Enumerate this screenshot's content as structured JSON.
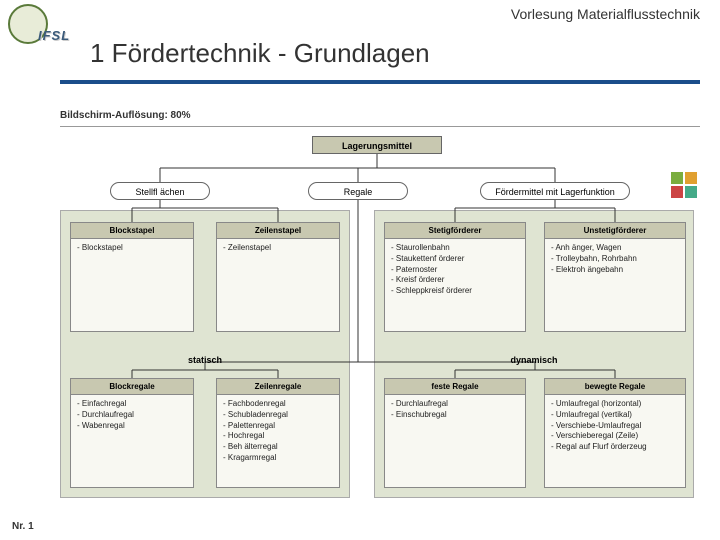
{
  "header": {
    "course": "Vorlesung Materialflusstechnik",
    "ifsl": "IFSL",
    "title": "1 Fördertechnik - Grundlagen",
    "resolution": "Bildschirm-Auflösung: 80%"
  },
  "colors": {
    "accent": "#1a4d8a",
    "panel_bg": "#dfe4d2",
    "box_head": "#c8c8b0",
    "card_bg": "#f8f8f2",
    "border": "#888888",
    "line": "#333333"
  },
  "diagram": {
    "root": "Lagerungsmittel",
    "pills": [
      "Stellfl ächen",
      "Regale",
      "Fördermittel mit Lagerfunktion"
    ],
    "section_labels": [
      "statisch",
      "dynamisch"
    ],
    "cards": {
      "r1c1": {
        "title": "Blockstapel",
        "items": [
          "Blockstapel"
        ]
      },
      "r1c2": {
        "title": "Zeilenstapel",
        "items": [
          "Zeilenstapel"
        ]
      },
      "r1c3": {
        "title": "Stetigförderer",
        "items": [
          "Staurollenbahn",
          "Staukettenf örderer",
          "Paternoster",
          "Kreisf örderer",
          "Schleppkreisf örderer"
        ]
      },
      "r1c4": {
        "title": "Unstetigförderer",
        "items": [
          "Anh änger, Wagen",
          "Trolleybahn, Rohrbahn",
          "Elektroh ängebahn"
        ]
      },
      "r2c1": {
        "title": "Blockregale",
        "items": [
          "Einfachregal",
          "Durchlaufregal",
          "Wabenregal"
        ]
      },
      "r2c2": {
        "title": "Zeilenregale",
        "items": [
          "Fachbodenregal",
          "Schubladenregal",
          "Palettenregal",
          "Hochregal",
          "Beh älterregal",
          "Kragarmregal"
        ]
      },
      "r2c3": {
        "title": "feste Regale",
        "items": [
          "Durchlaufregal",
          "Einschubregal"
        ]
      },
      "r2c4": {
        "title": "bewegte Regale",
        "items": [
          "Umlaufregal (horizontal)",
          "Umlaufregal (vertikal)",
          "Verschiebe-Umlaufregal",
          "Verschieberegal (Zeile)",
          "Regal auf Flurf örderzeug"
        ]
      }
    }
  },
  "footer": {
    "page": "Nr. 1"
  }
}
